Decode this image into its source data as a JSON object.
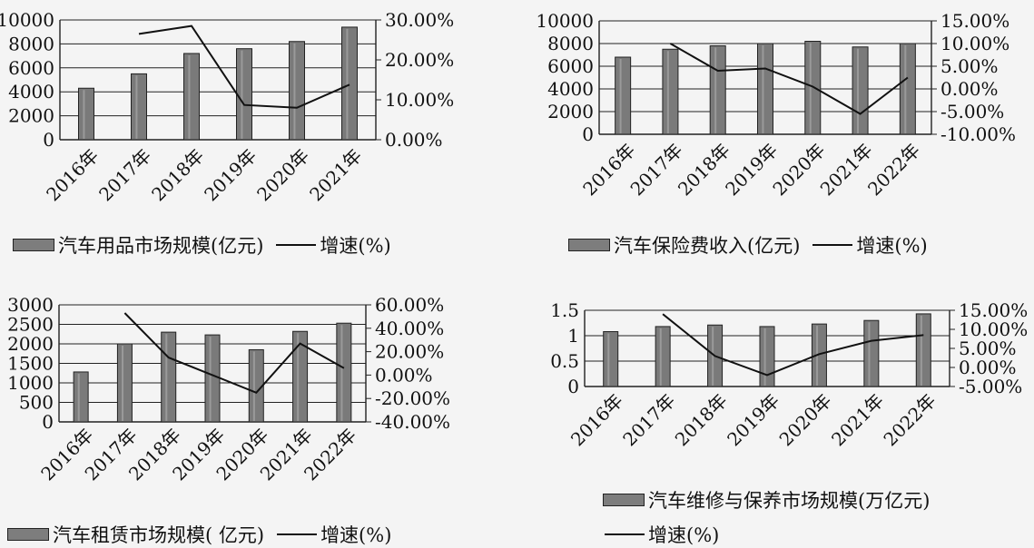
{
  "chart_data": [
    {
      "type": "bar",
      "categories": [
        "2016年",
        "2017年",
        "2018年",
        "2019年",
        "2020年",
        "2021年"
      ],
      "series": [
        {
          "name": "汽车用品市场规模(亿元)",
          "values": [
            4300,
            5500,
            7200,
            7600,
            8200,
            9400
          ]
        },
        {
          "name": "增速(%)",
          "type": "line",
          "axis": "right",
          "values": [
            null,
            26.5,
            28.5,
            8.7,
            8.0,
            13.8
          ]
        }
      ],
      "ylim": [
        0,
        10000
      ],
      "yticks": [
        "0",
        "2000",
        "4000",
        "6000",
        "8000",
        "10000"
      ],
      "y2lim": [
        0,
        30
      ],
      "y2ticks": [
        "0.00%",
        "10.00%",
        "20.00%",
        "30.00%"
      ]
    },
    {
      "type": "bar",
      "categories": [
        "2016年",
        "2017年",
        "2018年",
        "2019年",
        "2020年",
        "2021年",
        "2022年"
      ],
      "series": [
        {
          "name": "汽车保险费收入(亿元)",
          "values": [
            6800,
            7500,
            7800,
            8000,
            8200,
            7700,
            8000
          ]
        },
        {
          "name": "增速(%)",
          "type": "line",
          "axis": "right",
          "values": [
            null,
            10.0,
            4.0,
            4.5,
            0.5,
            -5.5,
            2.5
          ]
        }
      ],
      "ylim": [
        0,
        10000
      ],
      "yticks": [
        "0",
        "2000",
        "4000",
        "6000",
        "8000",
        "10000"
      ],
      "y2lim": [
        -10,
        15
      ],
      "y2ticks": [
        "-10.00%",
        "-5.00%",
        "0.00%",
        "5.00%",
        "10.00%",
        "15.00%"
      ]
    },
    {
      "type": "bar",
      "categories": [
        "2016年",
        "2017年",
        "2018年",
        "2019年",
        "2020年",
        "2021年",
        "2022年"
      ],
      "series": [
        {
          "name": "汽车租赁市场规模( 亿元)",
          "values": [
            1280,
            2000,
            2300,
            2230,
            1850,
            2320,
            2530
          ]
        },
        {
          "name": "增速(%)",
          "type": "line",
          "axis": "right",
          "values": [
            null,
            53,
            15,
            0,
            -15,
            27,
            6
          ]
        }
      ],
      "ylim": [
        0,
        3000
      ],
      "yticks": [
        "0",
        "500",
        "1000",
        "1500",
        "2000",
        "2500",
        "3000"
      ],
      "y2lim": [
        -40,
        60
      ],
      "y2ticks": [
        "-40.00%",
        "-20.00%",
        "0.00%",
        "20.00%",
        "40.00%",
        "60.00%"
      ]
    },
    {
      "type": "bar",
      "categories": [
        "2016年",
        "2017年",
        "2018年",
        "2019年",
        "2020年",
        "2021年",
        "2022年"
      ],
      "series": [
        {
          "name": "汽车维修与保养市场规模(万亿元)",
          "values": [
            1.08,
            1.18,
            1.21,
            1.18,
            1.23,
            1.3,
            1.43
          ]
        },
        {
          "name": "增速(%)",
          "type": "line",
          "axis": "right",
          "values": [
            null,
            14.0,
            3.0,
            -2.0,
            3.5,
            7.0,
            8.5
          ]
        }
      ],
      "ylim": [
        0,
        1.5
      ],
      "yticks": [
        "0",
        "0.5",
        "1",
        "1.5"
      ],
      "y2lim": [
        -5,
        15
      ],
      "y2ticks": [
        "-5.00%",
        "0.00%",
        "5.00%",
        "10.00%",
        "15.00%"
      ]
    }
  ]
}
